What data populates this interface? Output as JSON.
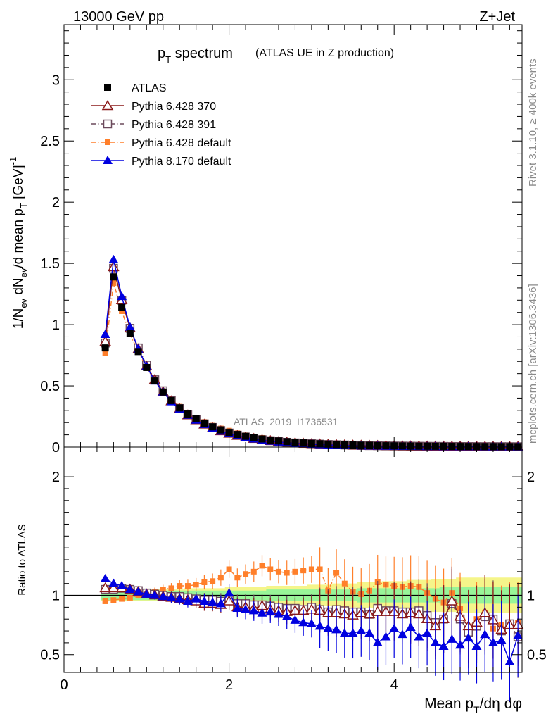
{
  "header": {
    "energy_label": "13000 GeV pp",
    "process_label": "Z+Jet"
  },
  "side": {
    "rivet_label": "Rivet 3.1.10, ≥ 400k events",
    "mcplots_label": "mcplots.cern.ch [arXiv:1306.3436]"
  },
  "analysis_label": "ATLAS_2019_I1736531",
  "chart_data": [
    {
      "type": "line",
      "title": "p_T spectrum",
      "title_main": "p",
      "title_sub": "T",
      "title_rest": " spectrum",
      "subtitle": "(ATLAS UE in Z production)",
      "ylabel": "1/N_ev dN_ev/d mean p_T [GeV]^-1",
      "ylim": [
        0,
        3.45
      ],
      "yticks": [
        0,
        0.5,
        1,
        1.5,
        2,
        2.5,
        3
      ],
      "ytick_labels": [
        "0",
        "0.5",
        "1",
        "1.5",
        "2",
        "2.5",
        "3"
      ],
      "xlim": [
        0,
        5.55
      ],
      "legend": [
        "ATLAS",
        "Pythia 6.428 370",
        "Pythia 6.428 391",
        "Pythia 6.428 default",
        "Pythia 8.170 default"
      ],
      "legend_position": "top-left",
      "x": [
        0.5,
        0.6,
        0.7,
        0.8,
        0.9,
        1.0,
        1.1,
        1.2,
        1.3,
        1.4,
        1.5,
        1.6,
        1.7,
        1.8,
        1.9,
        2.0,
        2.1,
        2.2,
        2.3,
        2.4,
        2.5,
        2.6,
        2.7,
        2.8,
        2.9,
        3.0,
        3.1,
        3.2,
        3.3,
        3.4,
        3.5,
        3.6,
        3.7,
        3.8,
        3.9,
        4.0,
        4.1,
        4.2,
        4.3,
        4.4,
        4.5,
        4.6,
        4.7,
        4.8,
        4.9,
        5.0,
        5.1,
        5.2,
        5.3,
        5.4,
        5.5
      ],
      "series": [
        {
          "name": "ATLAS",
          "values": [
            0.81,
            1.39,
            1.14,
            0.93,
            0.78,
            0.65,
            0.54,
            0.45,
            0.38,
            0.32,
            0.27,
            0.23,
            0.195,
            0.165,
            0.14,
            0.12,
            0.103,
            0.088,
            0.076,
            0.066,
            0.057,
            0.05,
            0.044,
            0.038,
            0.034,
            0.03,
            0.027,
            0.024,
            0.021,
            0.019,
            0.017,
            0.015,
            0.014,
            0.012,
            0.011,
            0.01,
            0.009,
            0.008,
            0.0075,
            0.007,
            0.0065,
            0.006,
            0.0055,
            0.005,
            0.0048,
            0.0045,
            0.0042,
            0.004,
            0.0038,
            0.0036,
            0.0034
          ]
        },
        {
          "name": "Pythia 6.428 370",
          "values": [
            0.86,
            1.47,
            1.2,
            0.97,
            0.8,
            0.66,
            0.55,
            0.45,
            0.375,
            0.31,
            0.26,
            0.22,
            0.185,
            0.155,
            0.13,
            0.11,
            0.093,
            0.079,
            0.068,
            0.058,
            0.05,
            0.043,
            0.038,
            0.033,
            0.029,
            0.026,
            0.023,
            0.02,
            0.018,
            0.016,
            0.014,
            0.013,
            0.012,
            0.011,
            0.0095,
            0.0085,
            0.0077,
            0.007,
            0.0064,
            0.0058,
            0.0053,
            0.0049,
            0.0045,
            0.0042,
            0.0039,
            0.0036,
            0.0033,
            0.0031,
            0.0029,
            0.0027,
            0.0025
          ]
        },
        {
          "name": "Pythia 6.428 391",
          "values": [
            0.85,
            1.46,
            1.2,
            0.97,
            0.81,
            0.67,
            0.55,
            0.46,
            0.38,
            0.315,
            0.265,
            0.225,
            0.19,
            0.16,
            0.135,
            0.115,
            0.097,
            0.082,
            0.07,
            0.06,
            0.052,
            0.045,
            0.039,
            0.034,
            0.03,
            0.027,
            0.024,
            0.021,
            0.019,
            0.017,
            0.015,
            0.013,
            0.012,
            0.011,
            0.0097,
            0.0088,
            0.008,
            0.0072,
            0.0066,
            0.006,
            0.0055,
            0.005,
            0.0046,
            0.0043,
            0.004,
            0.0037,
            0.0034,
            0.0032,
            0.003,
            0.0028,
            0.0026
          ]
        },
        {
          "name": "Pythia 6.428 default",
          "values": [
            0.77,
            1.34,
            1.11,
            0.92,
            0.78,
            0.65,
            0.54,
            0.46,
            0.39,
            0.33,
            0.28,
            0.24,
            0.205,
            0.175,
            0.152,
            0.134,
            0.113,
            0.096,
            0.084,
            0.075,
            0.064,
            0.055,
            0.049,
            0.042,
            0.038,
            0.034,
            0.031,
            0.025,
            0.025,
            0.021,
            0.018,
            0.016,
            0.015,
            0.013,
            0.012,
            0.011,
            0.0095,
            0.0085,
            0.008,
            0.0075,
            0.007,
            0.0065,
            0.0055,
            0.005,
            0.0045,
            0.004,
            0.0038,
            0.0035,
            0.003,
            0.0028,
            0.0026
          ]
        },
        {
          "name": "Pythia 8.170 default",
          "values": [
            0.92,
            1.53,
            1.23,
            0.98,
            0.8,
            0.66,
            0.54,
            0.45,
            0.37,
            0.31,
            0.26,
            0.22,
            0.185,
            0.155,
            0.13,
            0.11,
            0.092,
            0.078,
            0.066,
            0.056,
            0.048,
            0.041,
            0.035,
            0.03,
            0.026,
            0.023,
            0.02,
            0.017,
            0.015,
            0.013,
            0.012,
            0.01,
            0.0095,
            0.0085,
            0.0075,
            0.0068,
            0.006,
            0.0055,
            0.005,
            0.0045,
            0.004,
            0.0037,
            0.0035,
            0.003,
            0.0029,
            0.0027,
            0.0025,
            0.0023,
            0.0021,
            0.0018,
            0.0015
          ]
        }
      ]
    },
    {
      "type": "line",
      "ylabel": "Ratio to ATLAS",
      "xlabel": "Mean p_T/dη dφ",
      "xlabel_a": "Mean p",
      "xlabel_sub": "T",
      "xlabel_b": "/dη dφ",
      "ylim": [
        0.35,
        2.25
      ],
      "yticks": [
        0.5,
        1,
        2
      ],
      "ytick_labels": [
        "0.5",
        "1",
        "2"
      ],
      "xlim": [
        0,
        5.55
      ],
      "xticks": [
        0,
        2,
        4
      ],
      "xtick_labels": [
        "0",
        "2",
        "4"
      ],
      "reference": 1,
      "x": [
        0.5,
        0.6,
        0.7,
        0.8,
        0.9,
        1.0,
        1.1,
        1.2,
        1.3,
        1.4,
        1.5,
        1.6,
        1.7,
        1.8,
        1.9,
        2.0,
        2.1,
        2.2,
        2.3,
        2.4,
        2.5,
        2.6,
        2.7,
        2.8,
        2.9,
        3.0,
        3.1,
        3.2,
        3.3,
        3.4,
        3.5,
        3.6,
        3.7,
        3.8,
        3.9,
        4.0,
        4.1,
        4.2,
        4.3,
        4.4,
        4.5,
        4.6,
        4.7,
        4.8,
        4.9,
        5.0,
        5.1,
        5.2,
        5.3,
        5.4,
        5.5
      ],
      "band_inner": [
        0.04,
        0.04,
        0.04,
        0.04,
        0.04,
        0.04,
        0.04,
        0.04,
        0.04,
        0.04,
        0.04,
        0.04,
        0.04,
        0.04,
        0.04,
        0.04,
        0.04,
        0.04,
        0.04,
        0.04,
        0.05,
        0.05,
        0.05,
        0.05,
        0.05,
        0.05,
        0.05,
        0.05,
        0.05,
        0.05,
        0.05,
        0.06,
        0.06,
        0.06,
        0.06,
        0.06,
        0.06,
        0.06,
        0.06,
        0.06,
        0.06,
        0.07,
        0.07,
        0.07,
        0.07,
        0.07,
        0.07,
        0.07,
        0.07,
        0.07,
        0.07
      ],
      "band_outer": [
        0.05,
        0.05,
        0.05,
        0.05,
        0.05,
        0.05,
        0.05,
        0.05,
        0.05,
        0.05,
        0.06,
        0.06,
        0.06,
        0.06,
        0.06,
        0.07,
        0.07,
        0.07,
        0.07,
        0.07,
        0.08,
        0.08,
        0.08,
        0.08,
        0.08,
        0.09,
        0.09,
        0.09,
        0.1,
        0.1,
        0.1,
        0.11,
        0.11,
        0.11,
        0.12,
        0.12,
        0.12,
        0.13,
        0.13,
        0.13,
        0.14,
        0.14,
        0.14,
        0.15,
        0.15,
        0.15,
        0.15,
        0.15,
        0.15,
        0.15,
        0.15
      ],
      "series": [
        {
          "name": "Pythia 6.428 370",
          "values": [
            1.06,
            1.06,
            1.06,
            1.05,
            1.03,
            1.01,
            1.0,
            0.99,
            0.98,
            0.97,
            0.96,
            0.95,
            0.93,
            0.93,
            0.92,
            0.95,
            0.9,
            0.9,
            0.89,
            0.91,
            0.88,
            0.87,
            0.86,
            0.87,
            0.87,
            0.88,
            0.87,
            0.85,
            0.85,
            0.84,
            0.83,
            0.85,
            0.84,
            0.86,
            0.86,
            0.86,
            0.84,
            0.85,
            0.84,
            0.8,
            0.74,
            0.8,
            0.95,
            0.82,
            0.74,
            0.77,
            0.85,
            0.79,
            0.71,
            0.75,
            0.75
          ]
        },
        {
          "name": "Pythia 6.428 391",
          "values": [
            1.05,
            1.05,
            1.06,
            1.05,
            1.04,
            1.02,
            1.01,
            1.0,
            0.99,
            0.99,
            0.98,
            0.97,
            0.96,
            0.96,
            0.95,
            0.96,
            0.93,
            0.93,
            0.92,
            0.92,
            0.91,
            0.9,
            0.89,
            0.89,
            0.88,
            0.9,
            0.88,
            0.86,
            0.88,
            0.87,
            0.86,
            0.86,
            0.84,
            0.89,
            0.87,
            0.87,
            0.86,
            0.86,
            0.87,
            0.83,
            0.77,
            0.8,
            0.93,
            0.8,
            0.69,
            0.74,
            0.82,
            0.8,
            0.7,
            0.76,
            0.65
          ]
        },
        {
          "name": "Pythia 6.428 default",
          "values": [
            0.95,
            0.96,
            0.97,
            0.98,
            1.0,
            1.01,
            1.03,
            1.05,
            1.06,
            1.08,
            1.08,
            1.09,
            1.11,
            1.12,
            1.15,
            1.22,
            1.15,
            1.18,
            1.2,
            1.25,
            1.22,
            1.2,
            1.19,
            1.2,
            1.21,
            1.22,
            1.22,
            1.04,
            1.19,
            1.1,
            1.03,
            1.01,
            1.04,
            1.11,
            1.09,
            1.08,
            1.07,
            1.08,
            1.07,
            1.02,
            0.97,
            0.94,
            1.02,
            0.89,
            0.73,
            0.8,
            0.85,
            0.72,
            0.75,
            0.77,
            0.77
          ]
        },
        {
          "name": "Pythia 8.170 default",
          "values": [
            1.14,
            1.1,
            1.08,
            1.05,
            1.03,
            1.01,
            1.0,
            0.99,
            0.98,
            0.97,
            0.95,
            0.97,
            0.95,
            0.94,
            0.93,
            1.02,
            0.89,
            0.88,
            0.87,
            0.85,
            0.86,
            0.84,
            0.82,
            0.79,
            0.77,
            0.76,
            0.74,
            0.72,
            0.71,
            0.68,
            0.68,
            0.7,
            0.68,
            0.6,
            0.65,
            0.72,
            0.67,
            0.73,
            0.65,
            0.68,
            0.6,
            0.57,
            0.63,
            0.58,
            0.64,
            0.57,
            0.67,
            0.6,
            0.62,
            0.44,
            0.66
          ]
        }
      ]
    }
  ],
  "colors": {
    "atlas": "#000000",
    "p370": "#8b1a1a",
    "p391": "#6b4a5c",
    "pdef": "#ff7f2a",
    "p8": "#0000e0",
    "band_inner": "#98f598",
    "band_outer": "#f5f58a"
  }
}
